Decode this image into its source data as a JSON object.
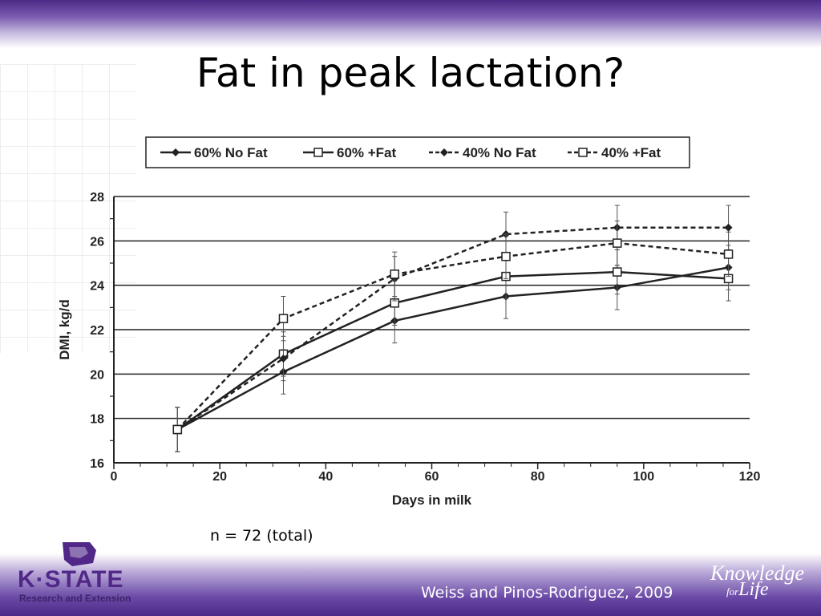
{
  "slide": {
    "title": "Fat in peak lactation?",
    "note": "n = 72 (total)",
    "citation": "Weiss and Pinos-Rodriguez, 2009",
    "logo_text": "K·STATE",
    "logo_subtext": "Research and Extension",
    "tagline_line1": "Knowledge",
    "tagline_for": "for",
    "tagline_life": "Life"
  },
  "colors": {
    "purple": "#512888",
    "line": "#222222"
  },
  "chart_data": {
    "type": "line",
    "xlabel": "Days in milk",
    "ylabel": "DMI, kg/d",
    "xlim": [
      0,
      120
    ],
    "ylim": [
      16,
      28
    ],
    "x_ticks": [
      0,
      20,
      40,
      60,
      80,
      100,
      120
    ],
    "y_ticks": [
      16,
      18,
      20,
      22,
      24,
      26,
      28
    ],
    "grid": "horizontal",
    "legend_position": "top",
    "x": [
      12,
      32,
      53,
      74,
      95,
      116
    ],
    "series": [
      {
        "name": "60% No Fat",
        "dash": false,
        "marker": "diamond-filled",
        "values": [
          17.5,
          20.1,
          22.4,
          23.5,
          23.9,
          24.8
        ],
        "err": [
          1.0,
          1.0,
          1.0,
          1.0,
          1.0,
          1.0
        ]
      },
      {
        "name": "60% +Fat",
        "dash": false,
        "marker": "square-open",
        "values": [
          17.5,
          20.9,
          23.2,
          24.4,
          24.6,
          24.3
        ],
        "err": [
          1.0,
          1.0,
          1.0,
          1.0,
          1.0,
          1.0
        ]
      },
      {
        "name": "40% No Fat",
        "dash": true,
        "marker": "diamond-filled",
        "values": [
          17.5,
          20.7,
          24.3,
          26.3,
          26.6,
          26.6
        ],
        "err": [
          1.0,
          1.0,
          1.0,
          1.0,
          1.0,
          1.0
        ]
      },
      {
        "name": "40% +Fat",
        "dash": true,
        "marker": "square-open",
        "values": [
          17.5,
          22.5,
          24.5,
          25.3,
          25.9,
          25.4
        ],
        "err": [
          1.0,
          1.0,
          1.0,
          1.0,
          1.0,
          1.0
        ]
      }
    ]
  }
}
